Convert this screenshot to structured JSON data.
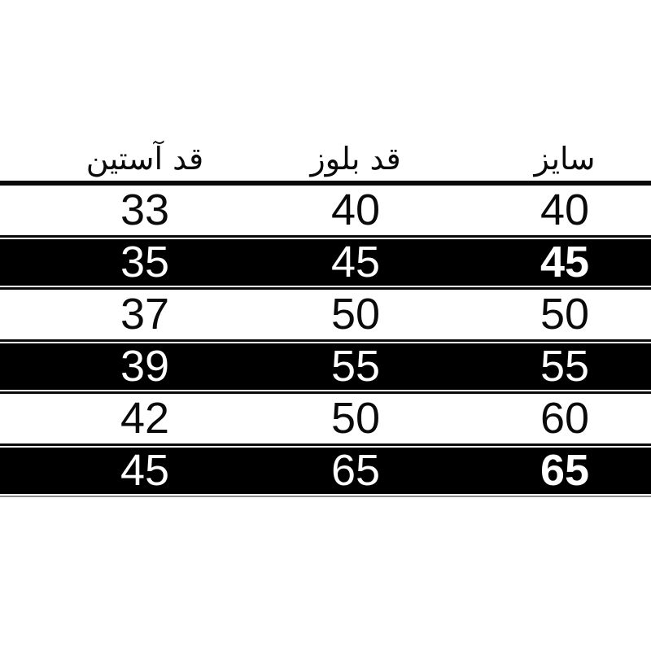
{
  "chart_data": {
    "type": "table",
    "direction": "rtl",
    "columns": [
      "سایز",
      "قد بلوز",
      "قد آستین"
    ],
    "rows": [
      [
        "40",
        "40",
        "33"
      ],
      [
        "45",
        "45",
        "35"
      ],
      [
        "50",
        "50",
        "37"
      ],
      [
        "55",
        "55",
        "39"
      ],
      [
        "60",
        "50",
        "42"
      ],
      [
        "65",
        "65",
        "45"
      ]
    ],
    "dark_band_row_indexes": [
      1,
      3,
      5
    ],
    "bold_cells": [
      [
        1,
        0
      ],
      [
        5,
        0
      ]
    ],
    "colors": {
      "light_row_bg": "#ffffff",
      "light_row_text": "#000000",
      "dark_row_bg": "#000000",
      "dark_row_text": "#ffffff",
      "divider": "#000000",
      "page_bg": "#ffffff"
    },
    "layout": {
      "header_divider_thickness_px": 6,
      "row_separator_thickness_px": 3,
      "grid": "horizontal-lines-only",
      "legend": "none"
    }
  }
}
